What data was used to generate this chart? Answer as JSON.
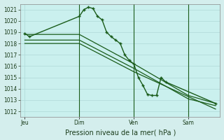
{
  "background_color": "#d4eeed",
  "plot_bg_color": "#caf0ee",
  "grid_color": "#b0d8d8",
  "line_color": "#1a5c1a",
  "title": "Pression niveau de la mer( hPa )",
  "ylim": [
    1011.5,
    1021.5
  ],
  "yticks": [
    1012,
    1013,
    1014,
    1015,
    1016,
    1017,
    1018,
    1019,
    1020,
    1021
  ],
  "xtick_labels": [
    "Jeu",
    "Dim",
    "Ven",
    "Sam"
  ],
  "xtick_positions": [
    0,
    12,
    24,
    36
  ],
  "vlines_x": [
    12,
    24,
    36
  ],
  "xlim": [
    -1,
    43
  ],
  "series1_x": [
    0,
    1,
    12,
    13,
    14,
    15,
    16,
    17,
    18,
    19,
    20,
    21,
    22,
    23,
    24,
    25,
    26,
    27,
    28,
    29,
    30,
    31,
    42
  ],
  "series1_y": [
    1018.9,
    1018.6,
    1020.4,
    1021.0,
    1021.2,
    1021.1,
    1020.4,
    1020.1,
    1019.0,
    1018.6,
    1018.3,
    1018.0,
    1017.0,
    1016.5,
    1016.2,
    1015.0,
    1014.3,
    1013.5,
    1013.4,
    1013.4,
    1015.0,
    1014.6,
    1012.7
  ],
  "series2_x": [
    0,
    12,
    24,
    36,
    42
  ],
  "series2_y": [
    1018.8,
    1018.8,
    1016.2,
    1013.4,
    1012.7
  ],
  "series3_x": [
    0,
    12,
    24,
    36,
    42
  ],
  "series3_y": [
    1018.3,
    1018.3,
    1015.8,
    1013.1,
    1012.5
  ],
  "series4_x": [
    0,
    12,
    24,
    42
  ],
  "series4_y": [
    1018.0,
    1018.0,
    1015.5,
    1012.2
  ],
  "tick_fontsize": 5.5,
  "xlabel_fontsize": 7.0
}
